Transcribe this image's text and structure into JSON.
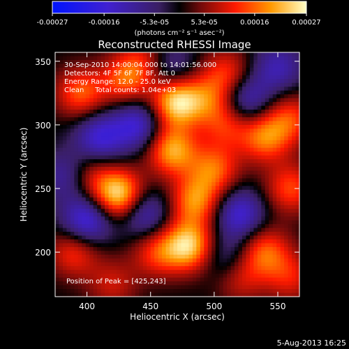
{
  "chart_data": {
    "type": "heatmap",
    "title": "Reconstructed RHESSI Image",
    "xlabel": "Heliocentric X (arcsec)",
    "ylabel": "Heliocentric Y (arcsec)",
    "xlim": [
      375,
      567
    ],
    "ylim": [
      165,
      357
    ],
    "x_ticks": [
      400,
      450,
      500,
      550
    ],
    "y_ticks": [
      200,
      250,
      300,
      350
    ],
    "colorbar": {
      "ticks": [
        "-0.00027",
        "-0.00016",
        "-5.3e-05",
        "5.3e-05",
        "0.00016",
        "0.00027"
      ],
      "range": [
        -0.00027,
        0.00027
      ],
      "unit_label": "(photons cm⁻² s⁻¹ asec⁻²)"
    },
    "annotations": {
      "time": "30-Sep-2010 14:00:04.000 to 14:01:56.000",
      "detectors": "Detectors: 4F 5F 6F 7F 8F, Att 0",
      "energy": "Energy Range: 12.0 - 25.0 keV",
      "method": "Clean     Total counts: 1.04e+03",
      "peak": "Position of Peak = [425,243]"
    },
    "sources": [
      {
        "x": 425,
        "y": 245,
        "amp": 1.0
      },
      {
        "x": 470,
        "y": 318,
        "amp": 0.95
      },
      {
        "x": 467,
        "y": 280,
        "amp": 0.8
      },
      {
        "x": 480,
        "y": 205,
        "amp": 0.9
      },
      {
        "x": 485,
        "y": 240,
        "amp": 0.7
      },
      {
        "x": 500,
        "y": 265,
        "amp": 0.6
      },
      {
        "x": 395,
        "y": 325,
        "amp": 0.6
      },
      {
        "x": 430,
        "y": 335,
        "amp": 0.55
      },
      {
        "x": 510,
        "y": 340,
        "amp": 0.5
      },
      {
        "x": 540,
        "y": 290,
        "amp": 0.65
      },
      {
        "x": 560,
        "y": 305,
        "amp": 0.5
      },
      {
        "x": 560,
        "y": 250,
        "amp": 0.55
      },
      {
        "x": 540,
        "y": 200,
        "amp": 0.6
      },
      {
        "x": 390,
        "y": 200,
        "amp": 0.5
      },
      {
        "x": 400,
        "y": 260,
        "amp": 0.45
      },
      {
        "x": 455,
        "y": 200,
        "amp": 0.5
      },
      {
        "x": 510,
        "y": 300,
        "amp": 0.45
      },
      {
        "x": 520,
        "y": 180,
        "amp": 0.4
      },
      {
        "x": 420,
        "y": 175,
        "amp": 0.35
      },
      {
        "x": 560,
        "y": 180,
        "amp": 0.4
      },
      {
        "x": 445,
        "y": 350,
        "amp": 0.4
      },
      {
        "x": 495,
        "y": 320,
        "amp": 0.45
      }
    ],
    "troughs": [
      {
        "x": 410,
        "y": 290,
        "amp": -0.6
      },
      {
        "x": 400,
        "y": 225,
        "amp": -0.7
      },
      {
        "x": 440,
        "y": 300,
        "amp": -0.6
      },
      {
        "x": 445,
        "y": 230,
        "amp": -0.55
      },
      {
        "x": 520,
        "y": 230,
        "amp": -0.6
      },
      {
        "x": 525,
        "y": 320,
        "amp": -0.55
      },
      {
        "x": 550,
        "y": 345,
        "amp": -0.45
      },
      {
        "x": 465,
        "y": 345,
        "amp": -0.4
      },
      {
        "x": 510,
        "y": 195,
        "amp": -0.35
      },
      {
        "x": 385,
        "y": 260,
        "amp": -0.5
      }
    ]
  },
  "footer": {
    "date": "5-Aug-2013 16:25"
  }
}
